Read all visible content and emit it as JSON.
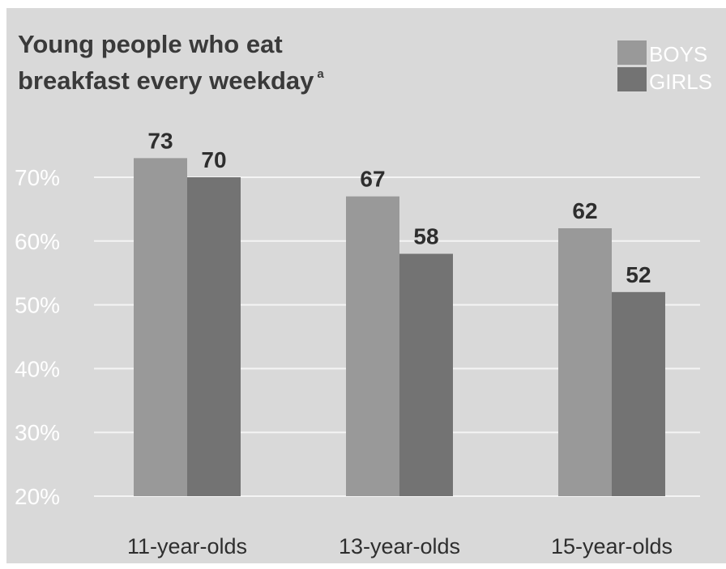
{
  "chart_data": {
    "type": "bar",
    "title_line1": "Young people who eat",
    "title_line2": "breakfast every weekday",
    "title_footnote": "a",
    "categories": [
      "11-year-olds",
      "13-year-olds",
      "15-year-olds"
    ],
    "series": [
      {
        "name": "BOYS",
        "values": [
          73,
          67,
          62
        ],
        "color": "#999999"
      },
      {
        "name": "GIRLS",
        "values": [
          70,
          58,
          52
        ],
        "color": "#737373"
      }
    ],
    "ylim": [
      20,
      70
    ],
    "yticks": [
      20,
      30,
      40,
      50,
      60,
      70
    ],
    "ytick_labels": [
      "20%",
      "30%",
      "40%",
      "50%",
      "60%",
      "70%"
    ],
    "grid": true,
    "legend_position": "top-right",
    "background": "#d9d9d9"
  }
}
